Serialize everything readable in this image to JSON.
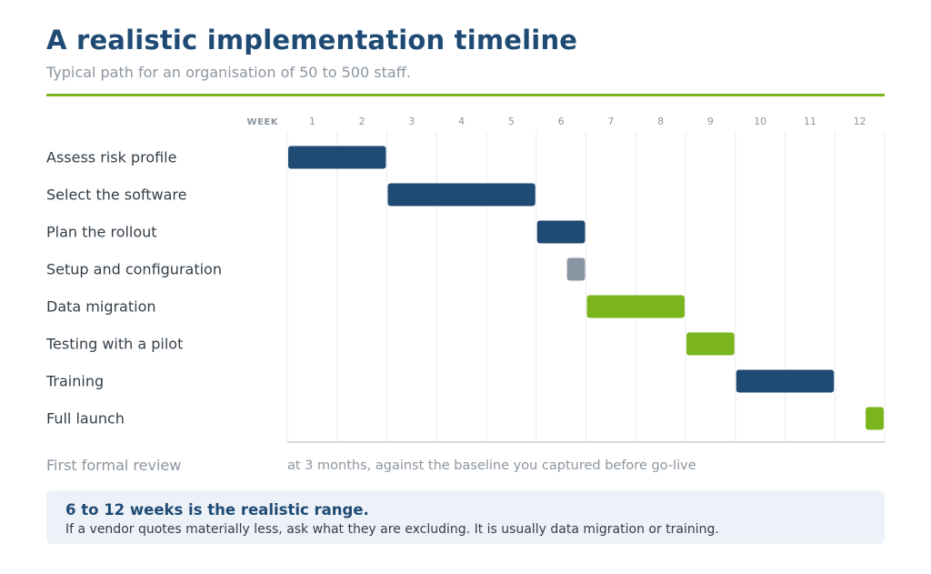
{
  "header": {
    "title": "A realistic implementation timeline",
    "subtitle": "Typical path for an organisation of 50 to 500 staff."
  },
  "chart_data": {
    "type": "gantt",
    "x_header": "WEEK",
    "weeks": [
      "1",
      "2",
      "3",
      "4",
      "5",
      "6",
      "7",
      "8",
      "9",
      "10",
      "11",
      "12"
    ],
    "xlim": [
      0,
      12
    ],
    "grid": true,
    "tasks": [
      {
        "label": "Assess risk profile",
        "start": 0,
        "end": 2,
        "color": "#1e4a73"
      },
      {
        "label": "Select the software",
        "start": 2,
        "end": 5,
        "color": "#1e4a73"
      },
      {
        "label": "Plan the rollout",
        "start": 5,
        "end": 6,
        "color": "#1e4a73"
      },
      {
        "label": "Setup and configuration",
        "start": 5.6,
        "end": 6,
        "color": "#8a96a3"
      },
      {
        "label": "Data migration",
        "start": 6,
        "end": 8,
        "color": "#7ab51d"
      },
      {
        "label": "Testing with a pilot",
        "start": 8,
        "end": 9,
        "color": "#7ab51d"
      },
      {
        "label": "Training",
        "start": 9,
        "end": 11,
        "color": "#1e4a73"
      },
      {
        "label": "Full launch",
        "start": 11.6,
        "end": 12,
        "color": "#7ab51d"
      }
    ]
  },
  "review": {
    "label": "First formal review",
    "text": "at 3 months, against the baseline you captured before go-live"
  },
  "callout": {
    "heading": "6 to 12 weeks is the realistic range.",
    "body": "If a vendor quotes materially less, ask what they are excluding. It is usually data migration or training."
  },
  "colors": {
    "navy": "#1e4a73",
    "green": "#7ab51d",
    "gray": "#8a96a3"
  }
}
